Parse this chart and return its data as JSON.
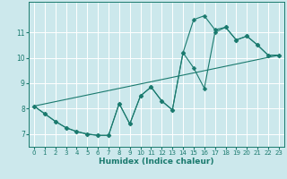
{
  "xlabel": "Humidex (Indice chaleur)",
  "bg_color": "#cce8ec",
  "grid_color": "#ffffff",
  "line_color": "#1a7a6e",
  "xlim": [
    -0.5,
    23.5
  ],
  "ylim": [
    6.5,
    12.2
  ],
  "yticks": [
    7,
    8,
    9,
    10,
    11
  ],
  "xticks": [
    0,
    1,
    2,
    3,
    4,
    5,
    6,
    7,
    8,
    9,
    10,
    11,
    12,
    13,
    14,
    15,
    16,
    17,
    18,
    19,
    20,
    21,
    22,
    23
  ],
  "line1_x": [
    0,
    1,
    2,
    3,
    4,
    5,
    6,
    7,
    8,
    9,
    10,
    11,
    12,
    13,
    14,
    15,
    16,
    17,
    18,
    19,
    20,
    21,
    22,
    23
  ],
  "line1_y": [
    8.1,
    7.8,
    7.5,
    7.25,
    7.1,
    7.0,
    6.95,
    6.95,
    8.2,
    7.4,
    8.5,
    8.85,
    8.3,
    7.95,
    10.2,
    9.6,
    8.8,
    11.0,
    11.2,
    10.7,
    10.85,
    10.5,
    10.1,
    10.1
  ],
  "line2_x": [
    0,
    1,
    2,
    3,
    4,
    5,
    6,
    7,
    8,
    9,
    10,
    11,
    12,
    13,
    14,
    15,
    16,
    17,
    18,
    19,
    20,
    21,
    22,
    23
  ],
  "line2_y": [
    8.1,
    7.8,
    7.5,
    7.25,
    7.1,
    7.0,
    6.95,
    6.95,
    8.2,
    7.4,
    8.5,
    8.85,
    8.3,
    7.95,
    10.2,
    11.5,
    11.65,
    11.1,
    11.2,
    10.7,
    10.85,
    10.5,
    10.1,
    10.1
  ],
  "line3_x": [
    0,
    23
  ],
  "line3_y": [
    8.1,
    10.1
  ]
}
